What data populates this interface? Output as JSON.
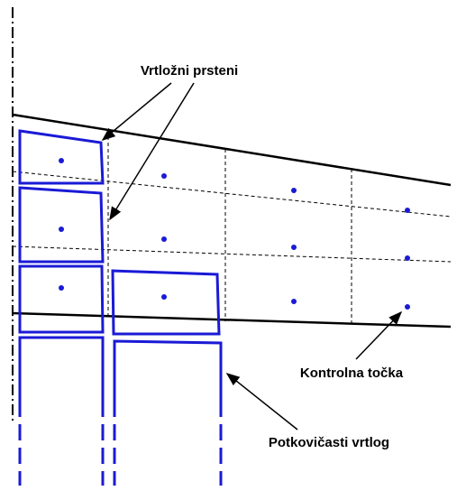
{
  "labels": {
    "rings": "Vrtložni prsteni",
    "control_point": "Kontrolna točka",
    "horseshoe": "Potkovičasti vrtlog"
  }
}
